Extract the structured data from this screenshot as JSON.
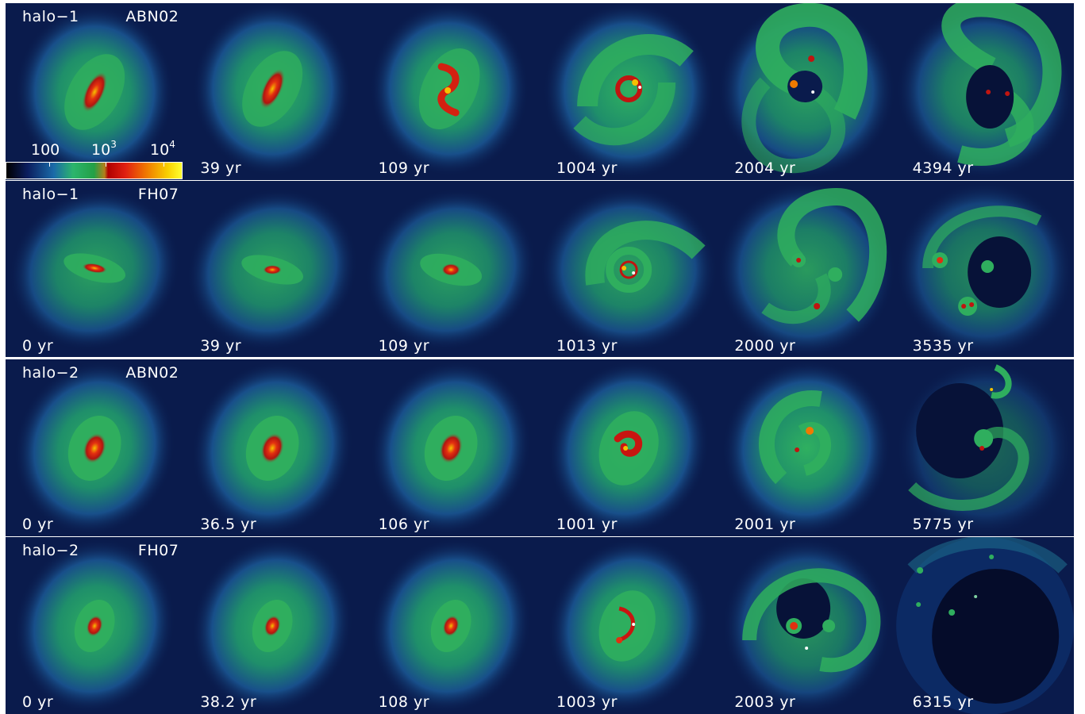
{
  "colors": {
    "background": "#0a1b4c",
    "green": "#2fae5e",
    "red": "#d42010",
    "yellow": "#f6c000"
  },
  "colorbar": {
    "tick_labels": [
      "100",
      "10",
      "10"
    ],
    "exponents": [
      "",
      "3",
      "4"
    ]
  },
  "rows": [
    {
      "halo": "halo−1",
      "ic": "ABN02",
      "times": [
        "",
        "39 yr",
        "109 yr",
        "1004 yr",
        "2004 yr",
        "4394 yr"
      ]
    },
    {
      "halo": "halo−1",
      "ic": "FH07",
      "times": [
        "0 yr",
        "39 yr",
        "109 yr",
        "1013 yr",
        "2000 yr",
        "3535 yr"
      ]
    },
    {
      "halo": "halo−2",
      "ic": "ABN02",
      "times": [
        "0 yr",
        "36.5 yr",
        "106 yr",
        "1001 yr",
        "2001 yr",
        "5775 yr"
      ]
    },
    {
      "halo": "halo−2",
      "ic": "FH07",
      "times": [
        "0 yr",
        "38.2 yr",
        "108 yr",
        "1003 yr",
        "2003 yr",
        "6315 yr"
      ]
    }
  ]
}
